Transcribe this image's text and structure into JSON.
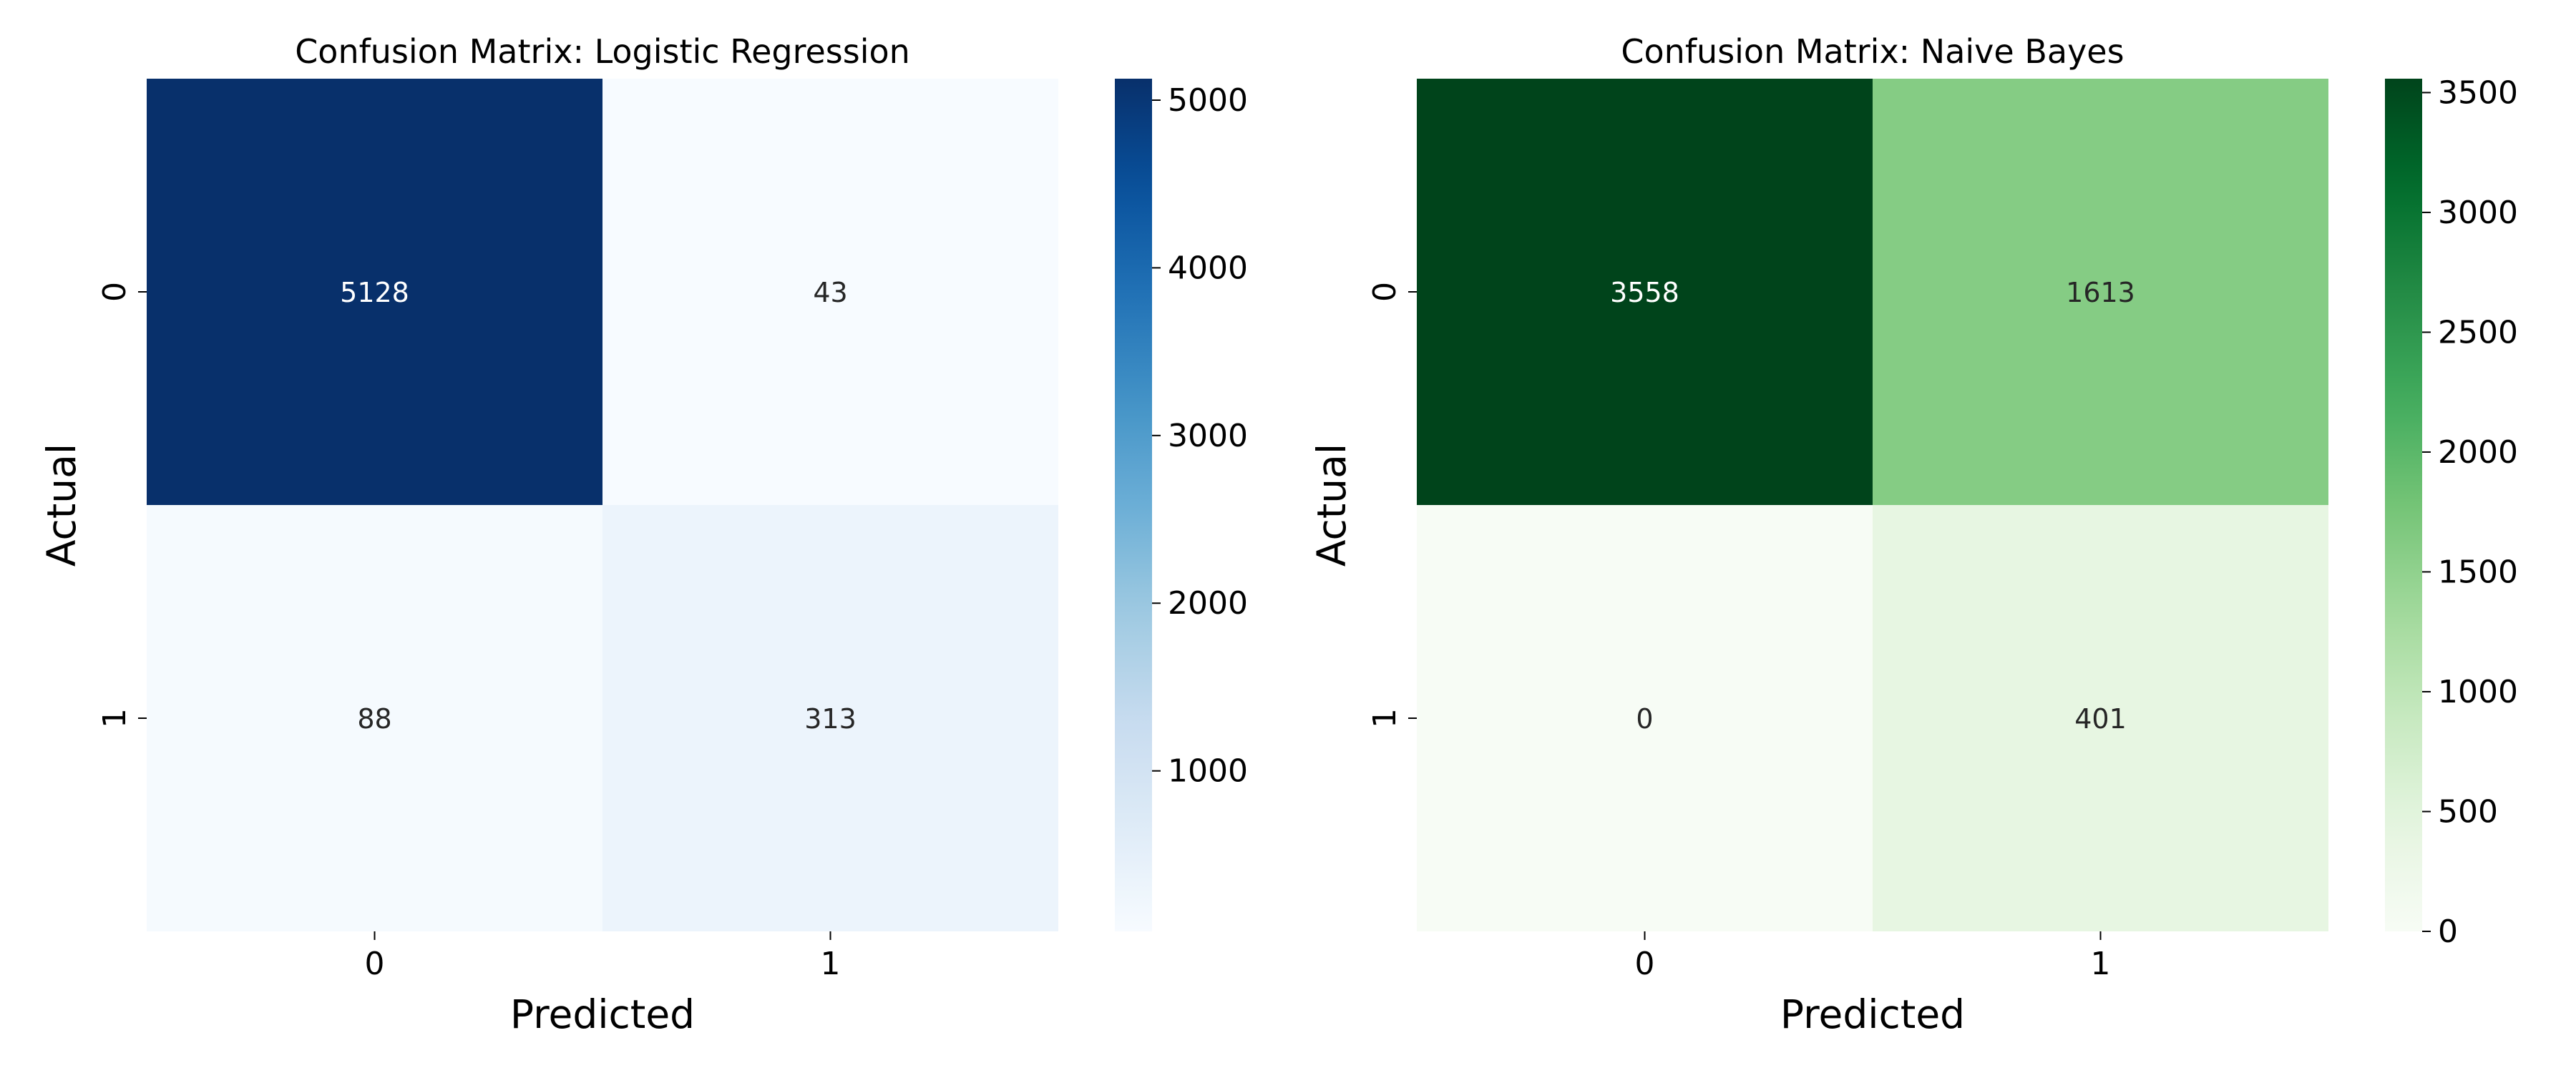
{
  "chart_data": [
    {
      "type": "heatmap",
      "title": "Confusion Matrix: Logistic Regression",
      "xlabel": "Predicted",
      "ylabel": "Actual",
      "x_categories": [
        "0",
        "1"
      ],
      "y_categories": [
        "0",
        "1"
      ],
      "values": [
        [
          5128,
          43
        ],
        [
          88,
          313
        ]
      ],
      "colormap": "Blues",
      "color_low": "#f7fbff",
      "color_high": "#08306b",
      "colorbar_range": [
        43,
        5128
      ],
      "colorbar_ticks": [
        1000,
        2000,
        3000,
        4000,
        5000
      ]
    },
    {
      "type": "heatmap",
      "title": "Confusion Matrix: Naive Bayes",
      "xlabel": "Predicted",
      "ylabel": "Actual",
      "x_categories": [
        "0",
        "1"
      ],
      "y_categories": [
        "0",
        "1"
      ],
      "values": [
        [
          3558,
          1613
        ],
        [
          0,
          401
        ]
      ],
      "colormap": "Greens",
      "color_low": "#f7fcf5",
      "color_high": "#00441b",
      "colorbar_range": [
        0,
        3558
      ],
      "colorbar_ticks": [
        0,
        500,
        1000,
        1500,
        2000,
        2500,
        3000,
        3500
      ]
    }
  ]
}
